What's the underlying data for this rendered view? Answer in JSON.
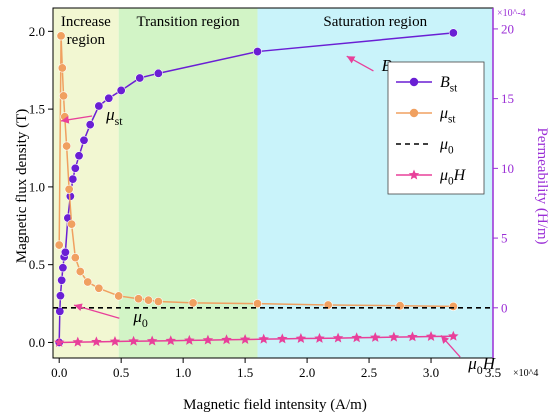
{
  "chart_data": {
    "type": "line",
    "xlabel": "Magnetic field intensity (A/m)",
    "ylabel_left": "Magnetic flux density (T)",
    "ylabel_right": "Permeability (H/m)",
    "x_multiplier": "×10^4",
    "right_multiplier": "×10^-4",
    "xlim": [
      -0.05,
      3.5
    ],
    "ylim_left": [
      -0.1,
      2.15
    ],
    "ylim_right": [
      -3.6,
      21.5
    ],
    "x_ticks": [
      "0.0",
      "0.5",
      "1.0",
      "1.5",
      "2.0",
      "2.5",
      "3.0",
      "3.5"
    ],
    "y_ticks_left": [
      "0.0",
      "0.5",
      "1.0",
      "1.5",
      "2.0"
    ],
    "y_ticks_right": [
      "0",
      "5",
      "10",
      "15",
      "20"
    ],
    "regions": [
      {
        "label_lines": [
          "Increase",
          "region"
        ],
        "x0": -0.05,
        "x1": 0.48,
        "color": "#f2f7d2"
      },
      {
        "label_lines": [
          "Transition region"
        ],
        "x0": 0.48,
        "x1": 1.6,
        "color": "#d2f4c6"
      },
      {
        "label_lines": [
          "Saturation region"
        ],
        "x0": 1.6,
        "x1": 3.5,
        "color": "#c9f3fa"
      }
    ],
    "series": [
      {
        "name": "B",
        "name_sub": "st",
        "axis": "left",
        "color": "#6a1fd4",
        "marker": "circle",
        "x": [
          0.0,
          0.005,
          0.01,
          0.02,
          0.03,
          0.04,
          0.05,
          0.07,
          0.09,
          0.11,
          0.13,
          0.16,
          0.2,
          0.25,
          0.32,
          0.4,
          0.5,
          0.65,
          0.8,
          1.6,
          3.18
        ],
        "y": [
          0.0,
          0.2,
          0.3,
          0.4,
          0.48,
          0.55,
          0.58,
          0.8,
          0.94,
          1.05,
          1.12,
          1.2,
          1.3,
          1.4,
          1.52,
          1.57,
          1.62,
          1.7,
          1.73,
          1.87,
          1.99
        ]
      },
      {
        "name": "μ",
        "name_sub": "st",
        "axis": "right",
        "color": "#f0a060",
        "marker": "circle",
        "x": [
          0.0,
          0.015,
          0.025,
          0.035,
          0.045,
          0.06,
          0.08,
          0.1,
          0.13,
          0.17,
          0.23,
          0.32,
          0.48,
          0.64,
          0.72,
          0.8,
          1.08,
          1.6,
          2.17,
          2.75,
          3.18
        ],
        "y": [
          4.5,
          19.5,
          17.2,
          15.2,
          13.7,
          11.6,
          8.5,
          6.0,
          3.6,
          2.6,
          1.85,
          1.4,
          0.85,
          0.65,
          0.55,
          0.45,
          0.35,
          0.3,
          0.2,
          0.15,
          0.1
        ]
      },
      {
        "name": "μ",
        "name_sub": "0",
        "axis": "right",
        "color": "#000000",
        "marker": "none",
        "dashed": true,
        "x": [
          -0.05,
          3.5
        ],
        "y": [
          0.0,
          0.0
        ]
      },
      {
        "name": "μ",
        "name_sub": "0",
        "name_suffix": "H",
        "axis": "left",
        "color": "#e8409a",
        "marker": "star",
        "x": [
          0.0,
          0.15,
          0.3,
          0.45,
          0.6,
          0.75,
          0.9,
          1.05,
          1.2,
          1.35,
          1.5,
          1.65,
          1.8,
          1.95,
          2.1,
          2.25,
          2.4,
          2.55,
          2.7,
          2.85,
          3.0,
          3.18
        ],
        "y": [
          0.0,
          0.002,
          0.004,
          0.006,
          0.008,
          0.009,
          0.011,
          0.013,
          0.015,
          0.017,
          0.019,
          0.021,
          0.023,
          0.025,
          0.026,
          0.028,
          0.03,
          0.032,
          0.034,
          0.036,
          0.038,
          0.04
        ]
      }
    ],
    "annotations": [
      {
        "text": "μ",
        "sub": "st",
        "color": "#e8409a",
        "x": 0.33,
        "y_left": 1.43
      },
      {
        "text": "B",
        "sub": "st",
        "color": "#e8409a",
        "x": 2.6,
        "y_left": 1.72
      },
      {
        "text": "μ",
        "sub": "0",
        "color": "#e8409a",
        "x": 0.55,
        "y_left": 0.13
      },
      {
        "text": "μ",
        "sub": "0",
        "suffix": "H",
        "color": "#e8409a",
        "x": 3.3,
        "y_left": -0.12
      }
    ],
    "legend": "top-right",
    "grid": false
  }
}
